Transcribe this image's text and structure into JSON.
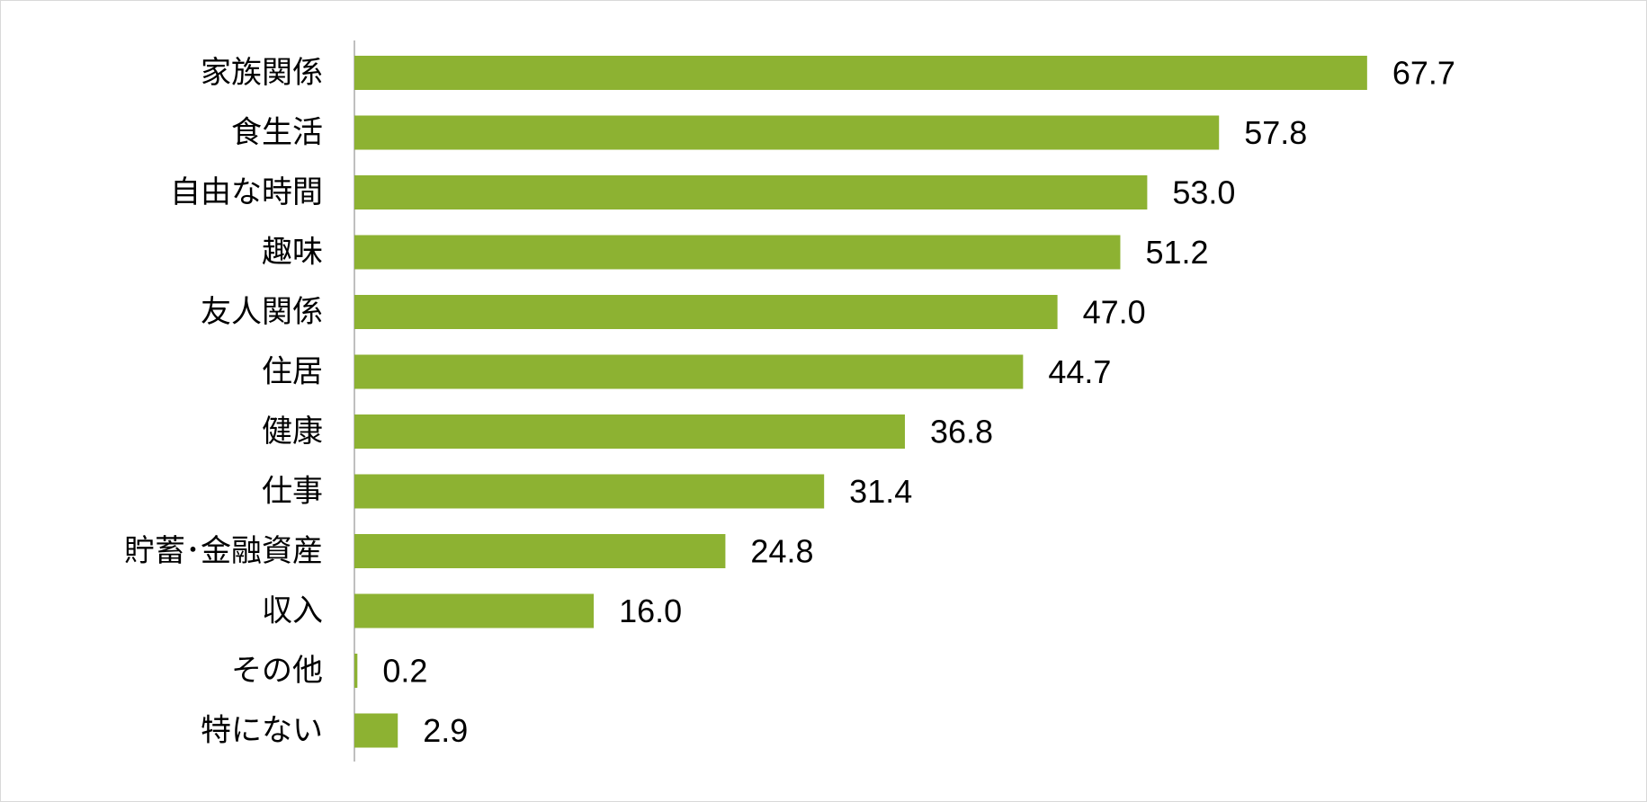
{
  "chart_data": {
    "type": "bar",
    "orientation": "horizontal",
    "categories": [
      "家族関係",
      "食生活",
      "自由な時間",
      "趣味",
      "友人関係",
      "住居",
      "健康",
      "仕事",
      "貯蓄･金融資産",
      "収入",
      "その他",
      "特にない"
    ],
    "values": [
      67.7,
      57.8,
      53.0,
      51.2,
      47.0,
      44.7,
      36.8,
      31.4,
      24.8,
      16.0,
      0.2,
      2.9
    ],
    "value_labels": [
      "67.7",
      "57.8",
      "53.0",
      "51.2",
      "47.0",
      "44.7",
      "36.8",
      "31.4",
      "24.8",
      "16.0",
      "0.2",
      "2.9"
    ],
    "xlim": [
      0,
      80
    ],
    "grid": false,
    "bar_color": "#8db232",
    "axis_color": "#bfbfbf"
  }
}
